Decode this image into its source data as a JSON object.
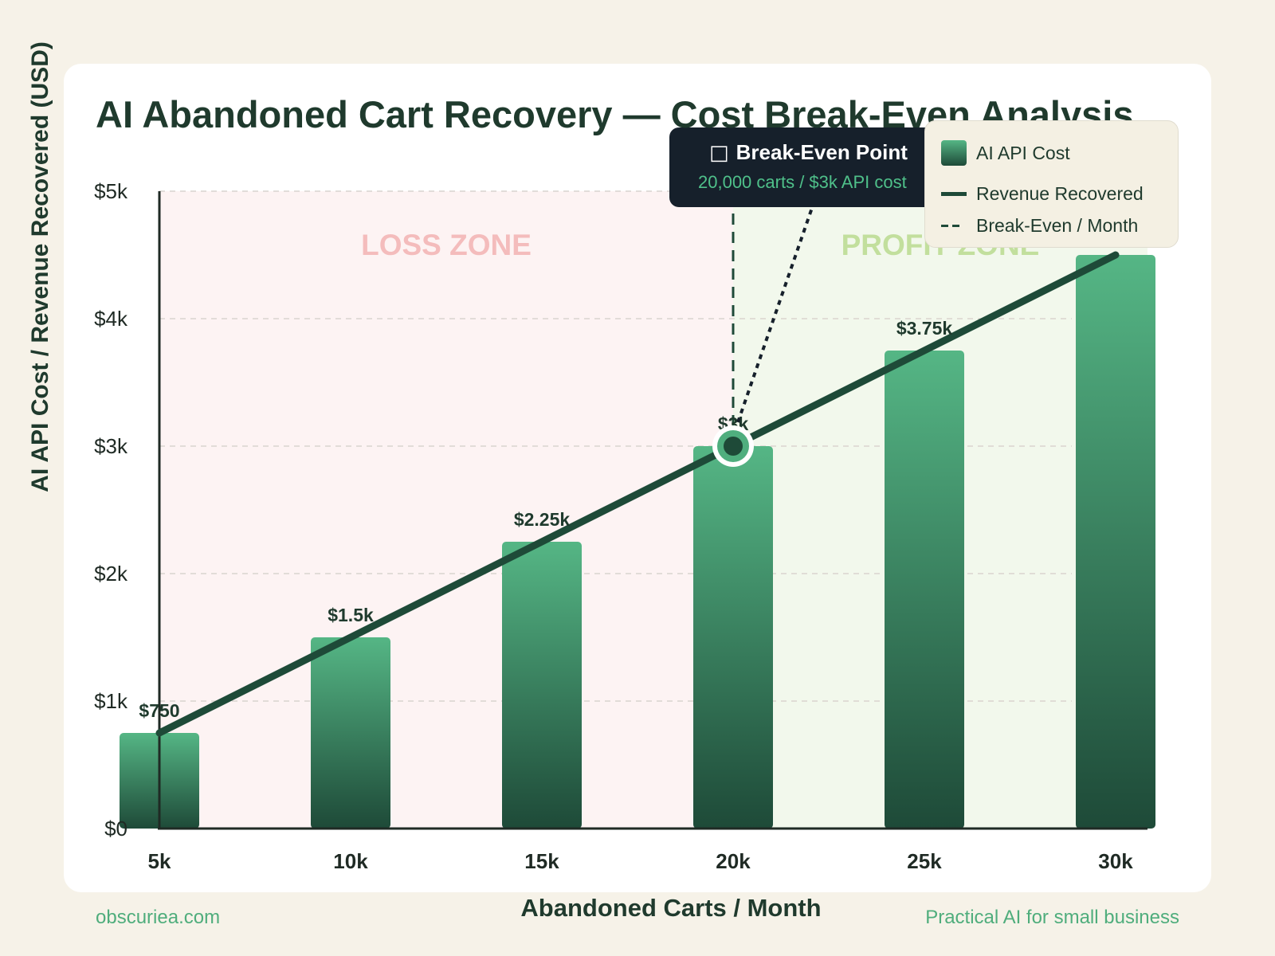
{
  "title": "AI Abandoned Cart Recovery — Cost Break-Even Analysis",
  "footer": {
    "left": "obscuriea.com",
    "right": "Practical AI for small business"
  },
  "zones": {
    "loss_label": "LOSS ZONE",
    "profit_label": "PROFIT ZONE"
  },
  "callout": {
    "icon": "□",
    "title": "Break-Even Point",
    "subtitle": "20,000 carts / $3k API cost"
  },
  "legend": {
    "items": [
      {
        "label": "AI API Cost",
        "swatch": "gradient-box"
      },
      {
        "label": "Revenue Recovered",
        "swatch": "solid-line"
      },
      {
        "label": "Break-Even / Month",
        "swatch": "dashed-line"
      }
    ],
    "placement": "top-right"
  },
  "colors": {
    "background": "#f6f2e8",
    "bar_top": "#55b685",
    "bar_bottom": "#1e4a38",
    "revenue_line": "#1e4a38",
    "title": "#1f3a2d",
    "loss_zone": "#fdf3f3",
    "profit_zone": "#f2f8ec",
    "loss_label": "#f4bcbc",
    "profit_label": "#c2df9d",
    "callout_bg": "#16202b",
    "callout_subtitle": "#4fc08a",
    "footer": "#4fad7c"
  },
  "chart_data": {
    "type": "bar",
    "title": "AI Abandoned Cart Recovery — Cost Break-Even Analysis",
    "xlabel": "Abandoned Carts / Month",
    "ylabel": "AI API Cost / Revenue Recovered (USD)",
    "categories": [
      "5k",
      "10k",
      "15k",
      "20k",
      "25k",
      "30k"
    ],
    "x_values": [
      5000,
      10000,
      15000,
      20000,
      25000,
      30000
    ],
    "series": [
      {
        "name": "AI API Cost",
        "type": "bar",
        "values": [
          750,
          1500,
          2250,
          3000,
          3750,
          4500
        ],
        "labels": [
          "$750",
          "$1.5k",
          "$2.25k",
          "$3k",
          "$3.75k",
          ""
        ]
      },
      {
        "name": "Revenue Recovered",
        "type": "line",
        "values": [
          750,
          1500,
          2250,
          3000,
          3750,
          4500
        ]
      }
    ],
    "break_even": {
      "x": 20000,
      "y": 3000,
      "label": "Break-Even / Month"
    },
    "ylim": [
      0,
      5000
    ],
    "y_ticks": [
      0,
      1000,
      2000,
      3000,
      4000,
      5000
    ],
    "y_tick_labels": [
      "$0",
      "$1k",
      "$2k",
      "$3k",
      "$4k",
      "$5k"
    ],
    "grid": true,
    "legend_placement": "top-right"
  }
}
